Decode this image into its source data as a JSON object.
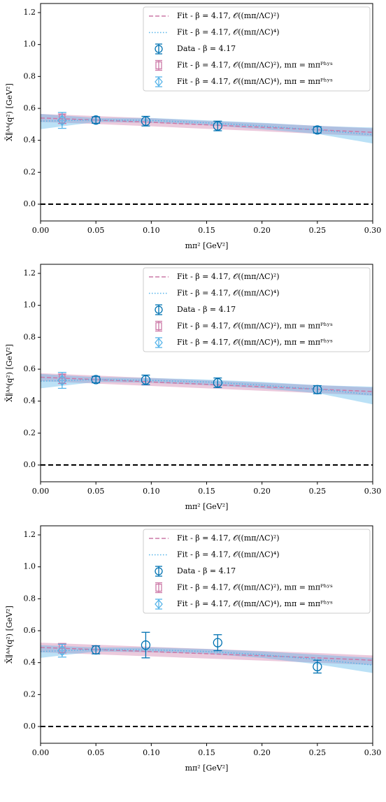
{
  "chart_data": [
    {
      "type": "line",
      "x_label": "mπ² [GeV²]",
      "y_label": "X̄∥ᴬᴬ(q²) [GeV²]",
      "xlim": [
        0,
        0.3
      ],
      "ylim": [
        -0.105,
        1.257
      ],
      "xticks": [
        {
          "value": 0,
          "label": "0.00"
        },
        {
          "value": 0.05,
          "label": "0.05"
        },
        {
          "value": 0.1,
          "label": "0.10"
        },
        {
          "value": 0.15,
          "label": "0.15"
        },
        {
          "value": 0.2,
          "label": "0.20"
        },
        {
          "value": 0.25,
          "label": "0.25"
        },
        {
          "value": 0.3,
          "label": "0.30"
        }
      ],
      "yticks": [
        {
          "value": 0,
          "label": "0.0"
        },
        {
          "value": 0.2,
          "label": "0.2"
        },
        {
          "value": 0.4,
          "label": "0.4"
        },
        {
          "value": 0.6,
          "label": "0.6"
        },
        {
          "value": 0.8,
          "label": "0.8"
        },
        {
          "value": 1,
          "label": "1.0"
        },
        {
          "value": 1.2,
          "label": "1.2"
        }
      ],
      "reference_line": 0,
      "legend": "upper right",
      "series": [
        {
          "name": "Fit - β = 4.17, 𝒪((mπ/ΛC)²)",
          "kind": "fit",
          "linestyle": "dashed",
          "color": "#cc79a7",
          "x": [
            0,
            0.05,
            0.1,
            0.15,
            0.2,
            0.25,
            0.3
          ],
          "values": [
            0.54,
            0.527,
            0.513,
            0.497,
            0.482,
            0.466,
            0.45
          ],
          "lower": [
            0.515,
            0.502,
            0.488,
            0.472,
            0.457,
            0.441,
            0.425
          ],
          "upper": [
            0.565,
            0.552,
            0.538,
            0.522,
            0.507,
            0.491,
            0.475
          ]
        },
        {
          "name": "Fit - β = 4.17, 𝒪((mπ/ΛC)⁴)",
          "kind": "fit",
          "linestyle": "dotted",
          "color": "#56b4e9",
          "x": [
            0,
            0.05,
            0.1,
            0.15,
            0.2,
            0.25,
            0.3
          ],
          "values": [
            0.52,
            0.528,
            0.525,
            0.51,
            0.49,
            0.465,
            0.435
          ],
          "lower": [
            0.47,
            0.515,
            0.51,
            0.495,
            0.47,
            0.44,
            0.38
          ],
          "upper": [
            0.565,
            0.54,
            0.54,
            0.525,
            0.51,
            0.49,
            0.48
          ]
        },
        {
          "name": "Data - β = 4.17",
          "kind": "data",
          "marker": "circle",
          "color": "#0072b2",
          "x": [
            0.05,
            0.095,
            0.16,
            0.25
          ],
          "values": [
            0.527,
            0.52,
            0.49,
            0.465
          ],
          "errors": [
            0.02,
            0.03,
            0.03,
            0.02
          ]
        },
        {
          "name": "Fit - β = 4.17, 𝒪((mπ/ΛC)²), mπ = mπᴾʰʸˢ",
          "kind": "phys",
          "marker": "square",
          "color": "#cc79a7",
          "x": [
            0.0195
          ],
          "values": [
            0.535
          ],
          "errors": [
            0.03
          ]
        },
        {
          "name": "Fit - β = 4.17, 𝒪((mπ/ΛC)⁴), mπ = mπᴾʰʸˢ",
          "kind": "phys",
          "marker": "diamond",
          "color": "#56b4e9",
          "x": [
            0.0195
          ],
          "values": [
            0.525
          ],
          "errors": [
            0.05
          ]
        }
      ]
    },
    {
      "type": "line",
      "x_label": "mπ² [GeV²]",
      "y_label": "X̄∥ᴬᴬ(q²) [GeV²]",
      "xlim": [
        0,
        0.3
      ],
      "ylim": [
        -0.105,
        1.257
      ],
      "xticks": [
        {
          "value": 0,
          "label": "0.00"
        },
        {
          "value": 0.05,
          "label": "0.05"
        },
        {
          "value": 0.1,
          "label": "0.10"
        },
        {
          "value": 0.15,
          "label": "0.15"
        },
        {
          "value": 0.2,
          "label": "0.20"
        },
        {
          "value": 0.25,
          "label": "0.25"
        },
        {
          "value": 0.3,
          "label": "0.30"
        }
      ],
      "yticks": [
        {
          "value": 0,
          "label": "0.0"
        },
        {
          "value": 0.2,
          "label": "0.2"
        },
        {
          "value": 0.4,
          "label": "0.4"
        },
        {
          "value": 0.6,
          "label": "0.6"
        },
        {
          "value": 0.8,
          "label": "0.8"
        },
        {
          "value": 1,
          "label": "1.0"
        },
        {
          "value": 1.2,
          "label": "1.2"
        }
      ],
      "reference_line": 0,
      "legend": "upper right",
      "series": [
        {
          "name": "Fit - β = 4.17, 𝒪((mπ/ΛC)²)",
          "kind": "fit",
          "linestyle": "dashed",
          "color": "#cc79a7",
          "x": [
            0,
            0.05,
            0.1,
            0.15,
            0.2,
            0.25,
            0.3
          ],
          "values": [
            0.55,
            0.535,
            0.52,
            0.505,
            0.49,
            0.475,
            0.46
          ],
          "lower": [
            0.525,
            0.51,
            0.495,
            0.48,
            0.465,
            0.45,
            0.435
          ],
          "upper": [
            0.575,
            0.56,
            0.545,
            0.53,
            0.515,
            0.5,
            0.485
          ]
        },
        {
          "name": "Fit - β = 4.17, 𝒪((mπ/ΛC)⁴)",
          "kind": "fit",
          "linestyle": "dotted",
          "color": "#56b4e9",
          "x": [
            0,
            0.05,
            0.1,
            0.15,
            0.2,
            0.25,
            0.3
          ],
          "values": [
            0.525,
            0.535,
            0.53,
            0.52,
            0.5,
            0.475,
            0.44
          ],
          "lower": [
            0.48,
            0.52,
            0.515,
            0.5,
            0.48,
            0.45,
            0.38
          ],
          "upper": [
            0.57,
            0.55,
            0.545,
            0.535,
            0.52,
            0.5,
            0.49
          ]
        },
        {
          "name": "Data - β = 4.17",
          "kind": "data",
          "marker": "circle",
          "color": "#0072b2",
          "x": [
            0.05,
            0.095,
            0.16,
            0.25
          ],
          "values": [
            0.535,
            0.533,
            0.515,
            0.472
          ],
          "errors": [
            0.02,
            0.03,
            0.03,
            0.025
          ]
        },
        {
          "name": "Fit - β = 4.17, 𝒪((mπ/ΛC)²), mπ = mπᴾʰʸˢ",
          "kind": "phys",
          "marker": "square",
          "color": "#cc79a7",
          "x": [
            0.0195
          ],
          "values": [
            0.54
          ],
          "errors": [
            0.03
          ]
        },
        {
          "name": "Fit - β = 4.17, 𝒪((mπ/ΛC)⁴), mπ = mπᴾʰʸˢ",
          "kind": "phys",
          "marker": "diamond",
          "color": "#56b4e9",
          "x": [
            0.0195
          ],
          "values": [
            0.53
          ],
          "errors": [
            0.05
          ]
        }
      ]
    },
    {
      "type": "line",
      "x_label": "mπ² [GeV²]",
      "y_label": "X̄∥ᴬᴬ(q²) [GeV²]",
      "xlim": [
        0,
        0.3
      ],
      "ylim": [
        -0.105,
        1.257
      ],
      "xticks": [
        {
          "value": 0,
          "label": "0.00"
        },
        {
          "value": 0.05,
          "label": "0.05"
        },
        {
          "value": 0.1,
          "label": "0.10"
        },
        {
          "value": 0.15,
          "label": "0.15"
        },
        {
          "value": 0.2,
          "label": "0.20"
        },
        {
          "value": 0.25,
          "label": "0.25"
        },
        {
          "value": 0.3,
          "label": "0.30"
        }
      ],
      "yticks": [
        {
          "value": 0,
          "label": "0.0"
        },
        {
          "value": 0.2,
          "label": "0.2"
        },
        {
          "value": 0.4,
          "label": "0.4"
        },
        {
          "value": 0.6,
          "label": "0.6"
        },
        {
          "value": 0.8,
          "label": "0.8"
        },
        {
          "value": 1,
          "label": "1.0"
        },
        {
          "value": 1.2,
          "label": "1.2"
        }
      ],
      "reference_line": 0,
      "legend": "upper right",
      "series": [
        {
          "name": "Fit - β = 4.17, 𝒪((mπ/ΛC)²)",
          "kind": "fit",
          "linestyle": "dashed",
          "color": "#cc79a7",
          "x": [
            0,
            0.05,
            0.1,
            0.15,
            0.2,
            0.25,
            0.3
          ],
          "values": [
            0.495,
            0.482,
            0.469,
            0.456,
            0.443,
            0.43,
            0.415
          ],
          "lower": [
            0.465,
            0.452,
            0.439,
            0.426,
            0.413,
            0.4,
            0.385
          ],
          "upper": [
            0.525,
            0.512,
            0.499,
            0.486,
            0.473,
            0.46,
            0.445
          ]
        },
        {
          "name": "Fit - β = 4.17, 𝒪((mπ/ΛC)⁴)",
          "kind": "fit",
          "linestyle": "dotted",
          "color": "#56b4e9",
          "x": [
            0,
            0.05,
            0.1,
            0.15,
            0.2,
            0.25,
            0.3
          ],
          "values": [
            0.47,
            0.482,
            0.48,
            0.47,
            0.45,
            0.42,
            0.385
          ],
          "lower": [
            0.43,
            0.47,
            0.465,
            0.455,
            0.43,
            0.39,
            0.335
          ],
          "upper": [
            0.51,
            0.495,
            0.495,
            0.485,
            0.47,
            0.45,
            0.43
          ]
        },
        {
          "name": "Data - β = 4.17",
          "kind": "data",
          "marker": "circle",
          "color": "#0072b2",
          "x": [
            0.05,
            0.095,
            0.16,
            0.25
          ],
          "values": [
            0.48,
            0.51,
            0.525,
            0.375
          ],
          "errors": [
            0.025,
            0.08,
            0.05,
            0.04
          ]
        },
        {
          "name": "Fit - β = 4.17, 𝒪((mπ/ΛC)²), mπ = mπᴾʰʸˢ",
          "kind": "phys",
          "marker": "square",
          "color": "#cc79a7",
          "x": [
            0.0195
          ],
          "values": [
            0.49
          ],
          "errors": [
            0.03
          ]
        },
        {
          "name": "Fit - β = 4.17, 𝒪((mπ/ΛC)⁴), mπ = mπᴾʰʸˢ",
          "kind": "phys",
          "marker": "diamond",
          "color": "#56b4e9",
          "x": [
            0.0195
          ],
          "values": [
            0.475
          ],
          "errors": [
            0.04
          ]
        }
      ]
    }
  ]
}
